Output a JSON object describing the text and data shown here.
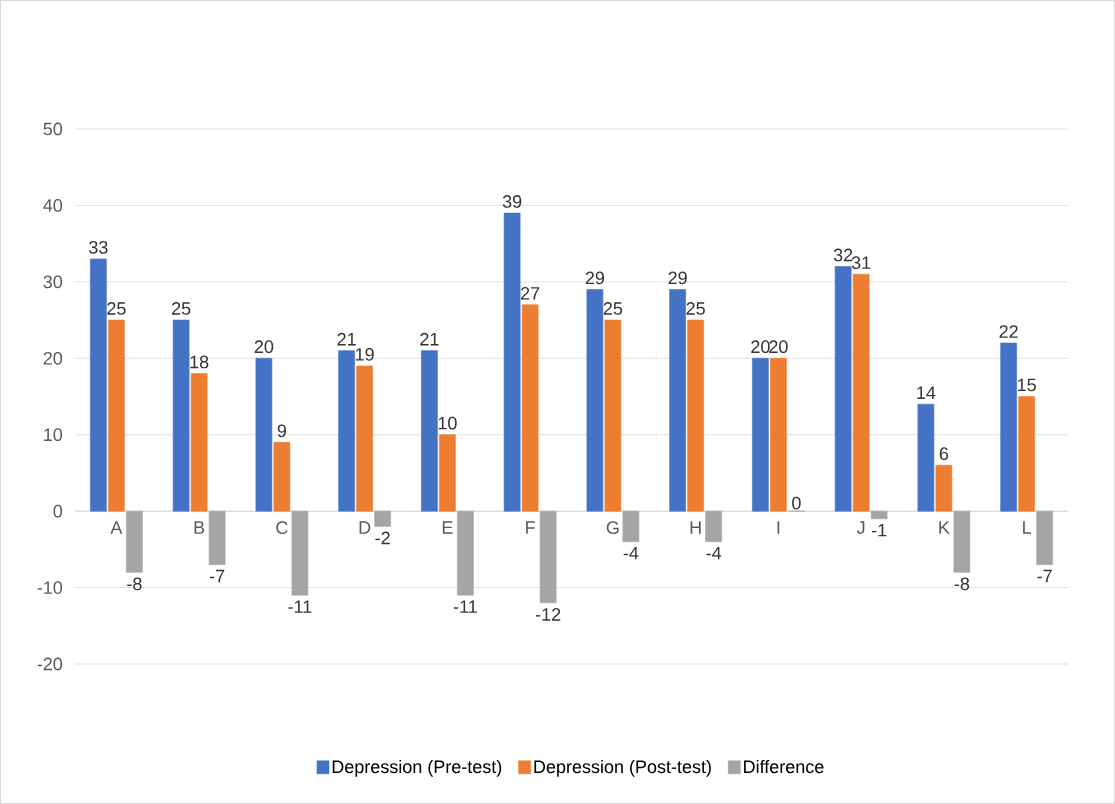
{
  "chart_data": {
    "type": "bar",
    "categories": [
      "A",
      "B",
      "C",
      "D",
      "E",
      "F",
      "G",
      "H",
      "I",
      "J",
      "K",
      "L"
    ],
    "series": [
      {
        "name": "Depression (Pre-test)",
        "color": "#4472c4",
        "values": [
          33,
          25,
          20,
          21,
          21,
          39,
          29,
          29,
          20,
          32,
          14,
          22
        ]
      },
      {
        "name": "Depression (Post-test)",
        "color": "#ed7d31",
        "values": [
          25,
          18,
          9,
          19,
          10,
          27,
          25,
          25,
          20,
          31,
          6,
          15
        ]
      },
      {
        "name": "Difference",
        "color": "#a5a5a5",
        "values": [
          -8,
          -7,
          -11,
          -2,
          -11,
          -12,
          -4,
          -4,
          0,
          -1,
          -8,
          -7
        ]
      }
    ],
    "ylim": [
      -20,
      50
    ],
    "yticks": [
      -20,
      -10,
      0,
      10,
      20,
      30,
      40,
      50
    ],
    "grid": "y",
    "legend": "bottom",
    "data_labels": true
  }
}
